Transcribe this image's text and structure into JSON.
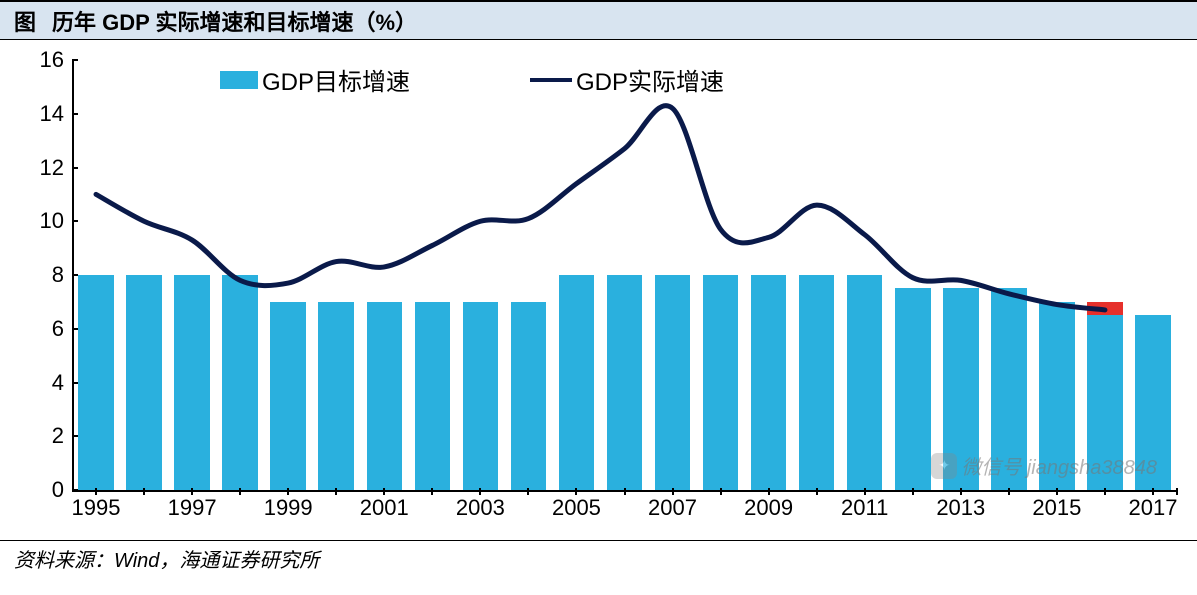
{
  "header": {
    "prefix": "图",
    "title": "历年 GDP 实际增速和目标增速（%）"
  },
  "footer": {
    "text": "资料来源：Wind，海通证券研究所"
  },
  "watermark": {
    "text": "微信号 jiangsha38848"
  },
  "chart": {
    "type": "bar+line",
    "background_color": "#ffffff",
    "header_bg": "#d8e4f0",
    "axis_color": "#000000",
    "font_family": "Microsoft YaHei",
    "title_fontsize": 22,
    "label_fontsize": 22,
    "legend_fontsize": 24,
    "y": {
      "min": 0,
      "max": 16,
      "tick_step": 2,
      "ticks": [
        0,
        2,
        4,
        6,
        8,
        10,
        12,
        14,
        16
      ]
    },
    "x": {
      "years": [
        1995,
        1996,
        1997,
        1998,
        1999,
        2000,
        2001,
        2002,
        2003,
        2004,
        2005,
        2006,
        2007,
        2008,
        2009,
        2010,
        2011,
        2012,
        2013,
        2014,
        2015,
        2016,
        2017
      ],
      "label_every": 2,
      "label_start": 1995
    },
    "series": {
      "target": {
        "label": "GDP目标增速",
        "type": "bar",
        "color": "#2ab0de",
        "bar_width_ratio": 0.74,
        "values": [
          8,
          8,
          8,
          8,
          7,
          7,
          7,
          7,
          7,
          7,
          8,
          8,
          8,
          8,
          8,
          8,
          8,
          7.5,
          7.5,
          7.5,
          7,
          6.5,
          6.5
        ],
        "highlight": {
          "index": 21,
          "top_value": 7,
          "color": "#e6302b"
        }
      },
      "actual": {
        "label": "GDP实际增速",
        "type": "line",
        "color": "#0a1a4a",
        "line_width": 5,
        "values": [
          11.0,
          10.0,
          9.3,
          7.8,
          7.7,
          8.5,
          8.3,
          9.1,
          10.0,
          10.1,
          11.4,
          12.7,
          14.2,
          9.7,
          9.4,
          10.6,
          9.5,
          7.9,
          7.8,
          7.3,
          6.9,
          6.7,
          null
        ]
      }
    },
    "legend": {
      "items": [
        "target",
        "actual"
      ],
      "position": "top-center"
    }
  }
}
